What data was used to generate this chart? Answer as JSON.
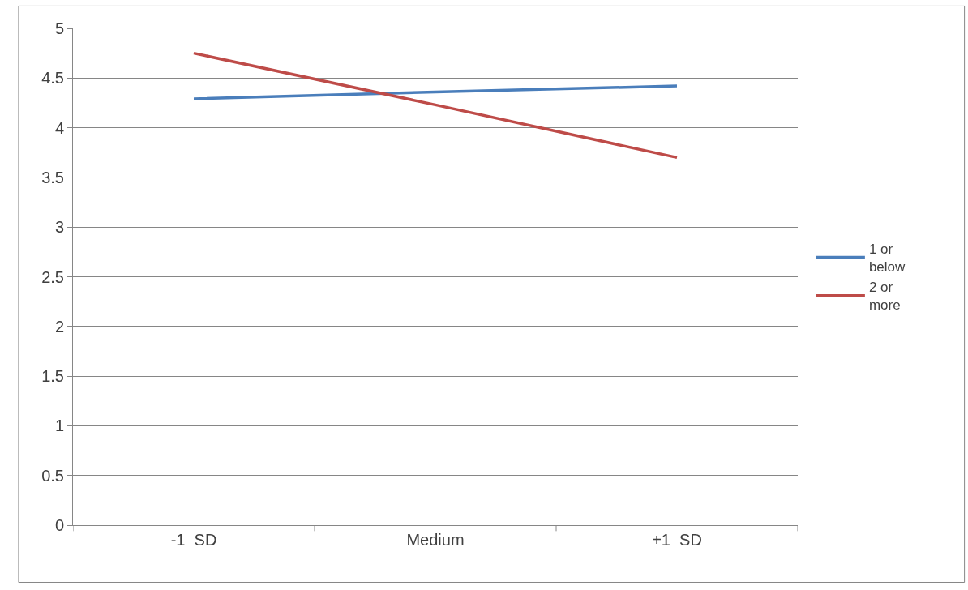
{
  "chart_data": {
    "type": "line",
    "categories": [
      "-1  SD",
      "Medium",
      "+1  SD"
    ],
    "series": [
      {
        "name": "1 or below",
        "color": "#4a7ebb",
        "values": [
          4.29,
          4.36,
          4.42
        ]
      },
      {
        "name": "2 or more",
        "color": "#be4b48",
        "values": [
          4.75,
          4.23,
          3.7
        ]
      }
    ],
    "ylim": [
      0,
      5
    ],
    "yticks": [
      0,
      0.5,
      1,
      1.5,
      2,
      2.5,
      3,
      3.5,
      4,
      4.5,
      5
    ],
    "grid": "y",
    "legend": "right",
    "marker": "none",
    "line_style": "solid"
  }
}
